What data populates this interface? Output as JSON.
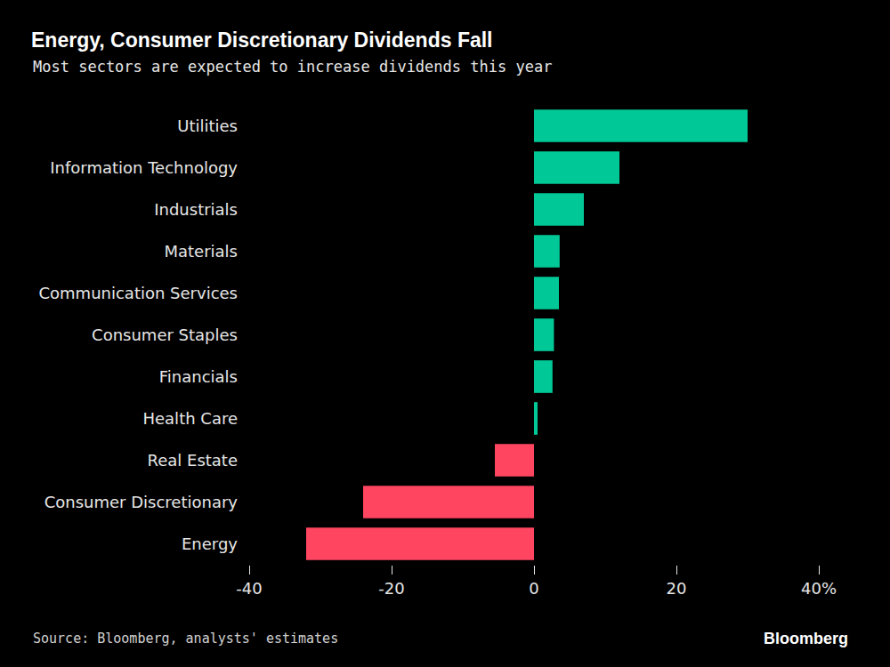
{
  "chart_data": {
    "type": "bar",
    "title": "Energy, Consumer Discretionary Dividends Fall",
    "subtitle": "Most sectors are expected to increase dividends this year",
    "orientation": "horizontal",
    "categories": [
      "Utilities",
      "Information Technology",
      "Industrials",
      "Materials",
      "Communication Services",
      "Consumer Staples",
      "Financials",
      "Health Care",
      "Real Estate",
      "Consumer Discretionary",
      "Energy"
    ],
    "values": [
      30,
      12,
      7,
      3.6,
      3.5,
      2.8,
      2.6,
      0.5,
      -5.5,
      -24,
      -32
    ],
    "colors": [
      "#00c896",
      "#00c896",
      "#00c896",
      "#00c896",
      "#00c896",
      "#00c896",
      "#00c896",
      "#00c896",
      "#ff4560",
      "#ff4560",
      "#ff4560"
    ],
    "xlim": [
      -40,
      40
    ],
    "xticks": [
      -40,
      -20,
      0,
      20,
      {
        "value": 40,
        "label": "40%"
      }
    ],
    "grid": false,
    "source": "Source: Bloomberg, analysts' estimates",
    "branding": "Bloomberg"
  }
}
